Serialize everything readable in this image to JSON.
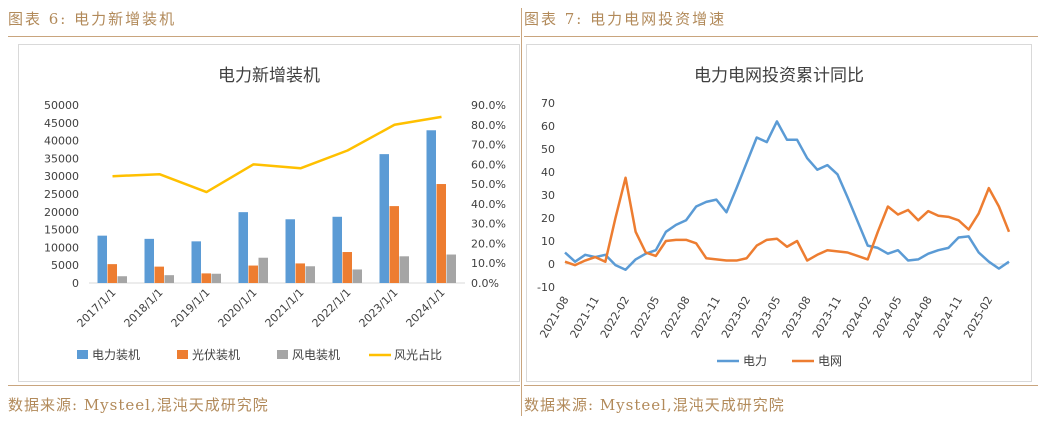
{
  "left_figure": {
    "caption": "图表 6:  电力新增装机",
    "source": "数据来源: Mysteel,混沌天成研究院"
  },
  "right_figure": {
    "caption": "图表 7:  电力电网投资增速",
    "source": "数据来源: Mysteel,混沌天成研究院"
  },
  "colors": {
    "caption": "#b28a5a",
    "blue": "#5b9bd5",
    "orange": "#ed7d31",
    "gray": "#a5a5a5",
    "yellow": "#ffc000"
  },
  "chart_data": [
    {
      "type": "bar",
      "title": "电力新增装机",
      "categories": [
        "2017/1/1",
        "2018/1/1",
        "2019/1/1",
        "2020/1/1",
        "2021/1/1",
        "2022/1/1",
        "2023/1/1",
        "2024/1/1"
      ],
      "series": [
        {
          "name": "电力装机",
          "type": "bar",
          "color": "#5b9bd5",
          "values": [
            13300,
            12400,
            11700,
            19900,
            17900,
            18600,
            36200,
            42900
          ]
        },
        {
          "name": "光伏装机",
          "type": "bar",
          "color": "#ed7d31",
          "values": [
            5300,
            4600,
            2700,
            4900,
            5500,
            8700,
            21600,
            27800
          ]
        },
        {
          "name": "风电装机",
          "type": "bar",
          "color": "#a5a5a5",
          "values": [
            1900,
            2200,
            2600,
            7100,
            4700,
            3800,
            7500,
            8000
          ]
        },
        {
          "name": "风光占比",
          "type": "line",
          "axis": "right",
          "color": "#ffc000",
          "values": [
            0.54,
            0.55,
            0.46,
            0.6,
            0.58,
            0.67,
            0.8,
            0.84
          ]
        }
      ],
      "y_left": {
        "ylim": [
          0,
          50000
        ],
        "ticks": [
          "0",
          "5000",
          "10000",
          "15000",
          "20000",
          "25000",
          "30000",
          "35000",
          "40000",
          "45000",
          "50000"
        ]
      },
      "y_right": {
        "ylim": [
          0,
          0.9
        ],
        "ticks": [
          "0.0%",
          "10.0%",
          "20.0%",
          "30.0%",
          "40.0%",
          "50.0%",
          "60.0%",
          "70.0%",
          "80.0%",
          "90.0%"
        ]
      },
      "legend_position": "bottom"
    },
    {
      "type": "line",
      "title": "电力电网投资累计同比",
      "x_labels": [
        "2021-08",
        "2021-11",
        "2022-02",
        "2022-05",
        "2022-08",
        "2022-11",
        "2023-02",
        "2023-05",
        "2023-08",
        "2023-11",
        "2024-02",
        "2024-05",
        "2024-08",
        "2024-11",
        "2025-02"
      ],
      "ylim": [
        -10,
        70
      ],
      "y_ticks": [
        "-10",
        "0",
        "10",
        "20",
        "30",
        "40",
        "50",
        "60",
        "70"
      ],
      "series": [
        {
          "name": "电力",
          "color": "#5b9bd5",
          "values": [
            5,
            1,
            4,
            3,
            4,
            -0.5,
            -2.5,
            2,
            4.5,
            6,
            14,
            17,
            19,
            25,
            27,
            28,
            22.5,
            33,
            44,
            55,
            53,
            62,
            54,
            54,
            46,
            41,
            43,
            39,
            29,
            18.5,
            8,
            7,
            4.5,
            6,
            1.5,
            2,
            4.5,
            6,
            7,
            11.5,
            12,
            5,
            1,
            -2,
            1
          ]
        },
        {
          "name": "电网",
          "color": "#ed7d31",
          "values": [
            1,
            -0.5,
            1.5,
            3,
            1,
            20,
            37.5,
            14,
            5,
            3.5,
            10,
            10.5,
            10.5,
            9,
            2.5,
            2,
            1.5,
            1.5,
            2.5,
            8,
            10.5,
            11,
            7.5,
            10,
            1.5,
            4,
            6,
            5.5,
            5,
            3.5,
            2,
            14,
            25,
            21.5,
            23.5,
            19,
            23,
            21,
            20.5,
            19,
            15,
            22,
            33,
            25,
            14
          ]
        }
      ],
      "legend_position": "bottom"
    }
  ]
}
